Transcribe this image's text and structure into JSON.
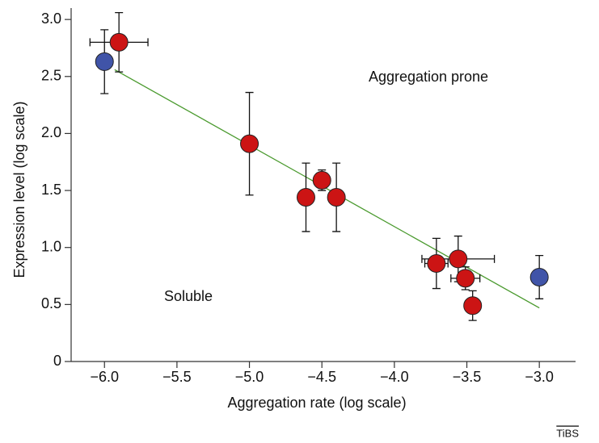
{
  "chart_data": {
    "type": "scatter",
    "xlabel": "Aggregation rate (log scale)",
    "ylabel": "Expression level (log scale)",
    "annotations": [
      "Aggregation prone",
      "Soluble"
    ],
    "annotation_color": "#4a9a2e",
    "credit": "TiBS",
    "xlim": [
      -6.23,
      -2.75
    ],
    "ylim": [
      0,
      3.1
    ],
    "xticks": [
      {
        "value": -6.0,
        "label": "−6.0"
      },
      {
        "value": -5.5,
        "label": "−5.5"
      },
      {
        "value": -5.0,
        "label": "−5.0"
      },
      {
        "value": -4.5,
        "label": "−4.5"
      },
      {
        "value": -4.0,
        "label": "−4.0"
      },
      {
        "value": -3.5,
        "label": "−3.5"
      },
      {
        "value": -3.0,
        "label": "−3.0"
      }
    ],
    "yticks": [
      0,
      0.5,
      {
        "value": 1.0,
        "label": "1.0"
      },
      1.5,
      {
        "value": 2.0,
        "label": "2.0"
      },
      2.5,
      {
        "value": 3.0,
        "label": "3.0"
      }
    ],
    "series": [
      {
        "color": "#cc1414",
        "x": [
          -5.9,
          -5.0,
          -4.61,
          -4.5,
          -4.4,
          -3.71,
          -3.56,
          -3.51,
          -3.46
        ],
        "y": [
          2.8,
          1.91,
          1.44,
          1.59,
          1.44,
          0.86,
          0.9,
          0.73,
          0.49
        ],
        "xerr": [
          0.2,
          null,
          null,
          null,
          null,
          0.08,
          0.25,
          0.1,
          null
        ],
        "yerr": [
          0.26,
          0.45,
          0.3,
          0.09,
          0.3,
          0.22,
          0.2,
          0.1,
          0.13
        ]
      },
      {
        "color": "#4054a8",
        "x": [
          -6.0,
          -3.0
        ],
        "y": [
          2.63,
          0.74
        ],
        "xerr": [
          null,
          null
        ],
        "yerr": [
          0.28,
          0.19
        ]
      }
    ],
    "trendline": {
      "x": [
        -5.93,
        -3.0
      ],
      "y": [
        2.56,
        0.47
      ],
      "color": "#4a9a2e"
    }
  }
}
